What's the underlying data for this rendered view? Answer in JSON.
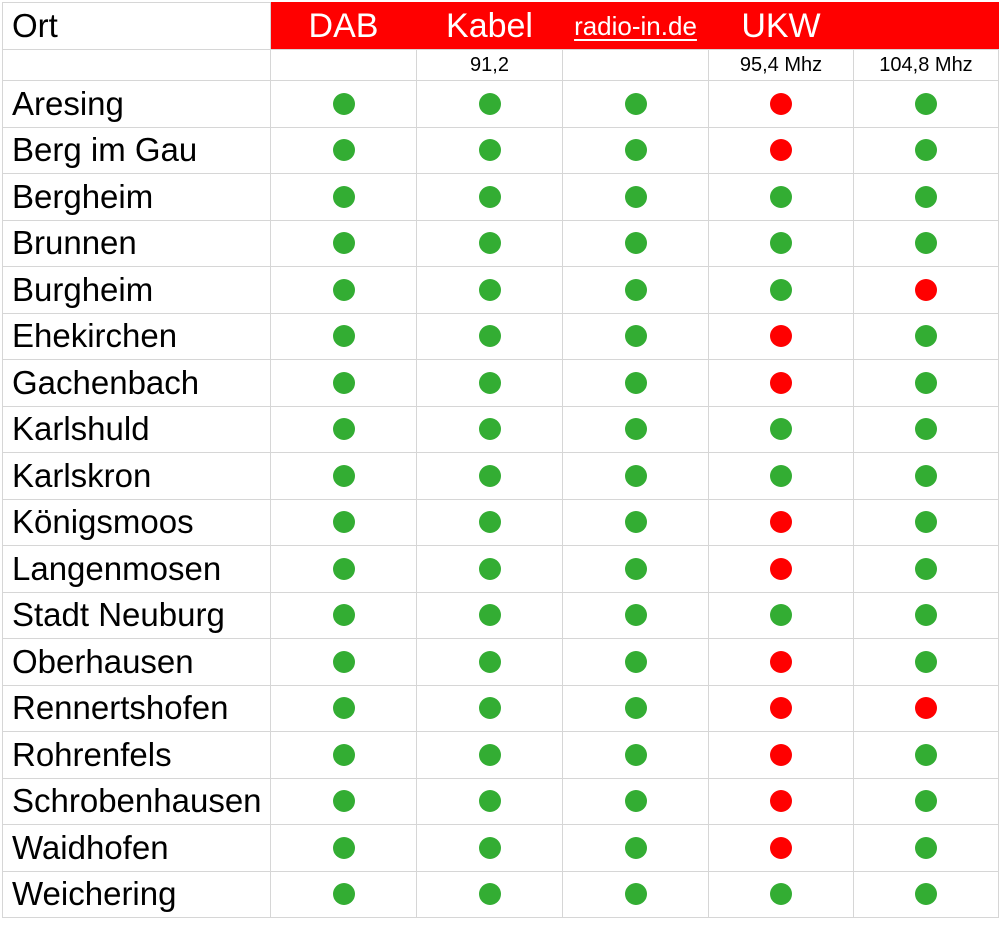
{
  "chart_data": {
    "type": "table",
    "header": {
      "ort": "Ort",
      "columns": [
        "DAB",
        "Kabel",
        "radio-in.de",
        "UKW",
        ""
      ]
    },
    "frequency_row": [
      "",
      "91,2",
      "",
      "95,4 Mhz",
      "104,8 Mhz"
    ],
    "rows": [
      {
        "ort": "Aresing",
        "statuses": [
          "green",
          "green",
          "green",
          "red",
          "green"
        ]
      },
      {
        "ort": "Berg im Gau",
        "statuses": [
          "green",
          "green",
          "green",
          "red",
          "green"
        ]
      },
      {
        "ort": "Bergheim",
        "statuses": [
          "green",
          "green",
          "green",
          "green",
          "green"
        ]
      },
      {
        "ort": "Brunnen",
        "statuses": [
          "green",
          "green",
          "green",
          "green",
          "green"
        ]
      },
      {
        "ort": "Burgheim",
        "statuses": [
          "green",
          "green",
          "green",
          "green",
          "red"
        ]
      },
      {
        "ort": "Ehekirchen",
        "statuses": [
          "green",
          "green",
          "green",
          "red",
          "green"
        ]
      },
      {
        "ort": "Gachenbach",
        "statuses": [
          "green",
          "green",
          "green",
          "red",
          "green"
        ]
      },
      {
        "ort": "Karlshuld",
        "statuses": [
          "green",
          "green",
          "green",
          "green",
          "green"
        ]
      },
      {
        "ort": "Karlskron",
        "statuses": [
          "green",
          "green",
          "green",
          "green",
          "green"
        ]
      },
      {
        "ort": "Königsmoos",
        "statuses": [
          "green",
          "green",
          "green",
          "red",
          "green"
        ]
      },
      {
        "ort": "Langenmosen",
        "statuses": [
          "green",
          "green",
          "green",
          "red",
          "green"
        ]
      },
      {
        "ort": "Stadt Neuburg",
        "statuses": [
          "green",
          "green",
          "green",
          "green",
          "green"
        ]
      },
      {
        "ort": "Oberhausen",
        "statuses": [
          "green",
          "green",
          "green",
          "red",
          "green"
        ]
      },
      {
        "ort": "Rennertshofen",
        "statuses": [
          "green",
          "green",
          "green",
          "red",
          "red"
        ]
      },
      {
        "ort": "Rohrenfels",
        "statuses": [
          "green",
          "green",
          "green",
          "red",
          "green"
        ]
      },
      {
        "ort": "Schrobenhausen",
        "statuses": [
          "green",
          "green",
          "green",
          "red",
          "green"
        ]
      },
      {
        "ort": "Waidhofen",
        "statuses": [
          "green",
          "green",
          "green",
          "red",
          "green"
        ]
      },
      {
        "ort": "Weichering",
        "statuses": [
          "green",
          "green",
          "green",
          "green",
          "green"
        ]
      }
    ]
  },
  "colors": {
    "header_bg": "#ff0000",
    "green_dot": "#33ad33",
    "red_dot": "#ff0000",
    "grid": "#d6d6d6",
    "header_text": "#ffffff",
    "text": "#000000"
  }
}
